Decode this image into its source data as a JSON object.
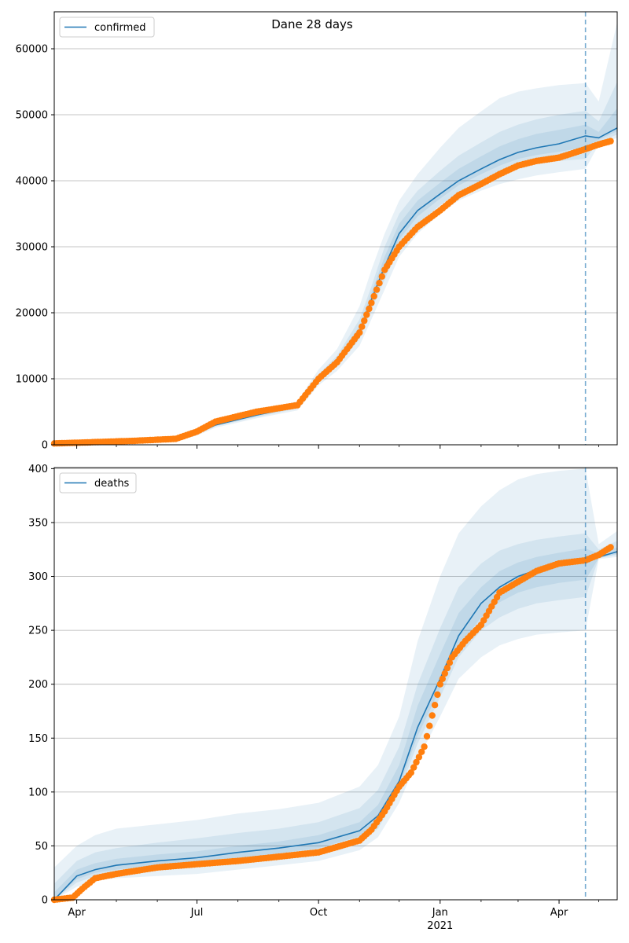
{
  "figure": {
    "suptitle": "Dane 28 days"
  },
  "chart_data": [
    {
      "type": "line",
      "legend": {
        "label": "confirmed",
        "placement": "upper-left"
      },
      "x_ticks": [
        "Apr",
        "Jul",
        "Oct",
        "Jan",
        "Apr"
      ],
      "x_year_label": "",
      "y_ticks": [
        "0",
        "10000",
        "20000",
        "30000",
        "40000",
        "50000",
        "60000"
      ],
      "ylim": [
        0,
        65600
      ],
      "grid": "y",
      "vline_date": "2021-04-21",
      "colors": {
        "model": "#1f77b4",
        "observed": "#ff7f0e",
        "band": "#1f77b4"
      },
      "model": {
        "name": "confirmed",
        "x": [
          "2020-03-15",
          "2020-04-15",
          "2020-05-15",
          "2020-06-15",
          "2020-07-01",
          "2020-07-15",
          "2020-08-15",
          "2020-09-15",
          "2020-10-01",
          "2020-10-15",
          "2020-11-01",
          "2020-11-10",
          "2020-11-20",
          "2020-12-01",
          "2020-12-15",
          "2021-01-01",
          "2021-01-15",
          "2021-02-01",
          "2021-02-15",
          "2021-03-01",
          "2021-03-15",
          "2021-04-01",
          "2021-04-21",
          "2021-05-01",
          "2021-05-15"
        ],
        "y": [
          200,
          300,
          500,
          800,
          1700,
          3000,
          4500,
          5800,
          10000,
          12600,
          17000,
          22000,
          27000,
          32000,
          35500,
          38000,
          40000,
          41800,
          43200,
          44300,
          45000,
          45600,
          46800,
          46500,
          48000
        ]
      },
      "bands": [
        {
          "level": "outer",
          "lower": [
            100,
            200,
            400,
            600,
            1400,
            2600,
            4000,
            5200,
            9000,
            11200,
            15000,
            19000,
            23500,
            28500,
            32000,
            35000,
            37000,
            38500,
            39500,
            40200,
            40800,
            41300,
            41800,
            45500,
            46500
          ],
          "upper": [
            300,
            450,
            700,
            1100,
            2100,
            3500,
            5100,
            6600,
            11400,
            14500,
            21000,
            26500,
            32000,
            37000,
            41000,
            45000,
            48000,
            50500,
            52500,
            53500,
            54000,
            54500,
            54800,
            52000,
            64000
          ]
        },
        {
          "level": "middle",
          "lower": [
            150,
            250,
            450,
            700,
            1550,
            2800,
            4200,
            5500,
            9500,
            11900,
            16000,
            20500,
            25000,
            30000,
            33500,
            36300,
            38300,
            40000,
            41200,
            42000,
            42600,
            43000,
            43300,
            45900,
            47000
          ],
          "upper": [
            250,
            380,
            600,
            950,
            1900,
            3250,
            4800,
            6200,
            10700,
            13500,
            19000,
            24000,
            30000,
            35000,
            38500,
            41500,
            43800,
            45800,
            47400,
            48500,
            49300,
            50000,
            50600,
            49000,
            55000
          ]
        },
        {
          "level": "inner",
          "lower": [
            180,
            280,
            480,
            760,
            1650,
            2900,
            4380,
            5680,
            9800,
            12300,
            16600,
            21300,
            26100,
            31100,
            34600,
            37300,
            39300,
            41000,
            42300,
            43300,
            43900,
            44400,
            45100,
            46200,
            47500
          ],
          "upper": [
            220,
            330,
            550,
            850,
            1780,
            3150,
            4650,
            6000,
            10300,
            13000,
            18000,
            23000,
            28500,
            33500,
            37000,
            39700,
            41800,
            43700,
            45200,
            46300,
            47100,
            47700,
            48500,
            47400,
            51000
          ]
        }
      ],
      "observed": {
        "x": [
          "2020-03-15",
          "2020-04-15",
          "2020-05-15",
          "2020-06-15",
          "2020-07-01",
          "2020-07-15",
          "2020-08-15",
          "2020-09-15",
          "2020-10-01",
          "2020-10-15",
          "2020-11-01",
          "2020-11-10",
          "2020-11-20",
          "2020-12-01",
          "2020-12-15",
          "2021-01-01",
          "2021-01-15",
          "2021-02-01",
          "2021-02-15",
          "2021-03-01",
          "2021-03-15",
          "2021-04-01",
          "2021-04-21",
          "2021-05-01",
          "2021-05-10"
        ],
        "y": [
          200,
          400,
          600,
          900,
          2000,
          3500,
          5000,
          6000,
          10000,
          12500,
          17000,
          21500,
          26500,
          30000,
          33000,
          35500,
          37800,
          39500,
          41000,
          42300,
          43000,
          43500,
          44800,
          45500,
          46000
        ]
      }
    },
    {
      "type": "line",
      "legend": {
        "label": "deaths",
        "placement": "upper-left"
      },
      "x_ticks": [
        "Apr",
        "Jul",
        "Oct",
        "Jan",
        "Apr"
      ],
      "x_year_label": "2021",
      "y_ticks": [
        "0",
        "50",
        "100",
        "150",
        "200",
        "250",
        "300",
        "350",
        "400"
      ],
      "ylim": [
        0,
        401
      ],
      "grid": "y",
      "vline_date": "2021-04-21",
      "colors": {
        "model": "#1f77b4",
        "observed": "#ff7f0e",
        "band": "#1f77b4"
      },
      "model": {
        "name": "deaths",
        "x": [
          "2020-03-15",
          "2020-04-01",
          "2020-04-15",
          "2020-05-01",
          "2020-06-01",
          "2020-07-01",
          "2020-08-01",
          "2020-09-01",
          "2020-10-01",
          "2020-11-01",
          "2020-11-15",
          "2020-12-01",
          "2020-12-15",
          "2021-01-01",
          "2021-01-15",
          "2021-02-01",
          "2021-02-15",
          "2021-03-01",
          "2021-03-15",
          "2021-04-01",
          "2021-04-21",
          "2021-05-01",
          "2021-05-15"
        ],
        "y": [
          0,
          22,
          28,
          32,
          36,
          39,
          44,
          48,
          53,
          64,
          78,
          110,
          160,
          205,
          245,
          275,
          290,
          300,
          306,
          310,
          313,
          318,
          323
        ]
      },
      "bands": [
        {
          "level": "outer",
          "lower": [
            0,
            12,
            18,
            20,
            22,
            24,
            28,
            32,
            36,
            46,
            58,
            90,
            130,
            170,
            205,
            225,
            236,
            242,
            246,
            248,
            250,
            316,
            318
          ],
          "upper": [
            30,
            50,
            60,
            66,
            70,
            74,
            80,
            84,
            90,
            105,
            125,
            170,
            240,
            300,
            340,
            365,
            380,
            390,
            395,
            398,
            400,
            330,
            342
          ]
        },
        {
          "level": "middle",
          "lower": [
            0,
            16,
            22,
            25,
            28,
            31,
            35,
            39,
            43,
            54,
            66,
            100,
            145,
            188,
            225,
            250,
            262,
            270,
            275,
            278,
            281,
            317,
            320
          ],
          "upper": [
            15,
            36,
            44,
            48,
            53,
            57,
            62,
            66,
            72,
            85,
            102,
            142,
            200,
            252,
            290,
            312,
            324,
            330,
            334,
            337,
            340,
            325,
            333
          ]
        },
        {
          "level": "inner",
          "lower": [
            0,
            19,
            25,
            28,
            32,
            35,
            39,
            43,
            48,
            59,
            72,
            105,
            152,
            196,
            235,
            262,
            276,
            285,
            290,
            294,
            297,
            317,
            321
          ],
          "upper": [
            7,
            28,
            34,
            38,
            42,
            45,
            50,
            54,
            60,
            72,
            88,
            125,
            180,
            228,
            266,
            290,
            305,
            313,
            318,
            322,
            326,
            321,
            327
          ]
        }
      ],
      "observed": {
        "x": [
          "2020-03-15",
          "2020-03-29",
          "2020-04-05",
          "2020-04-15",
          "2020-05-01",
          "2020-06-01",
          "2020-07-01",
          "2020-08-01",
          "2020-09-01",
          "2020-10-01",
          "2020-11-01",
          "2020-11-10",
          "2020-11-20",
          "2020-12-01",
          "2020-12-10",
          "2020-12-20",
          "2021-01-01",
          "2021-01-10",
          "2021-01-20",
          "2021-02-01",
          "2021-02-15",
          "2021-03-01",
          "2021-03-15",
          "2021-04-01",
          "2021-04-21",
          "2021-05-01",
          "2021-05-10"
        ],
        "y": [
          0,
          2,
          10,
          20,
          24,
          30,
          33,
          36,
          40,
          44,
          55,
          65,
          82,
          105,
          118,
          142,
          200,
          225,
          240,
          255,
          285,
          295,
          305,
          312,
          315,
          320,
          327
        ]
      }
    }
  ]
}
